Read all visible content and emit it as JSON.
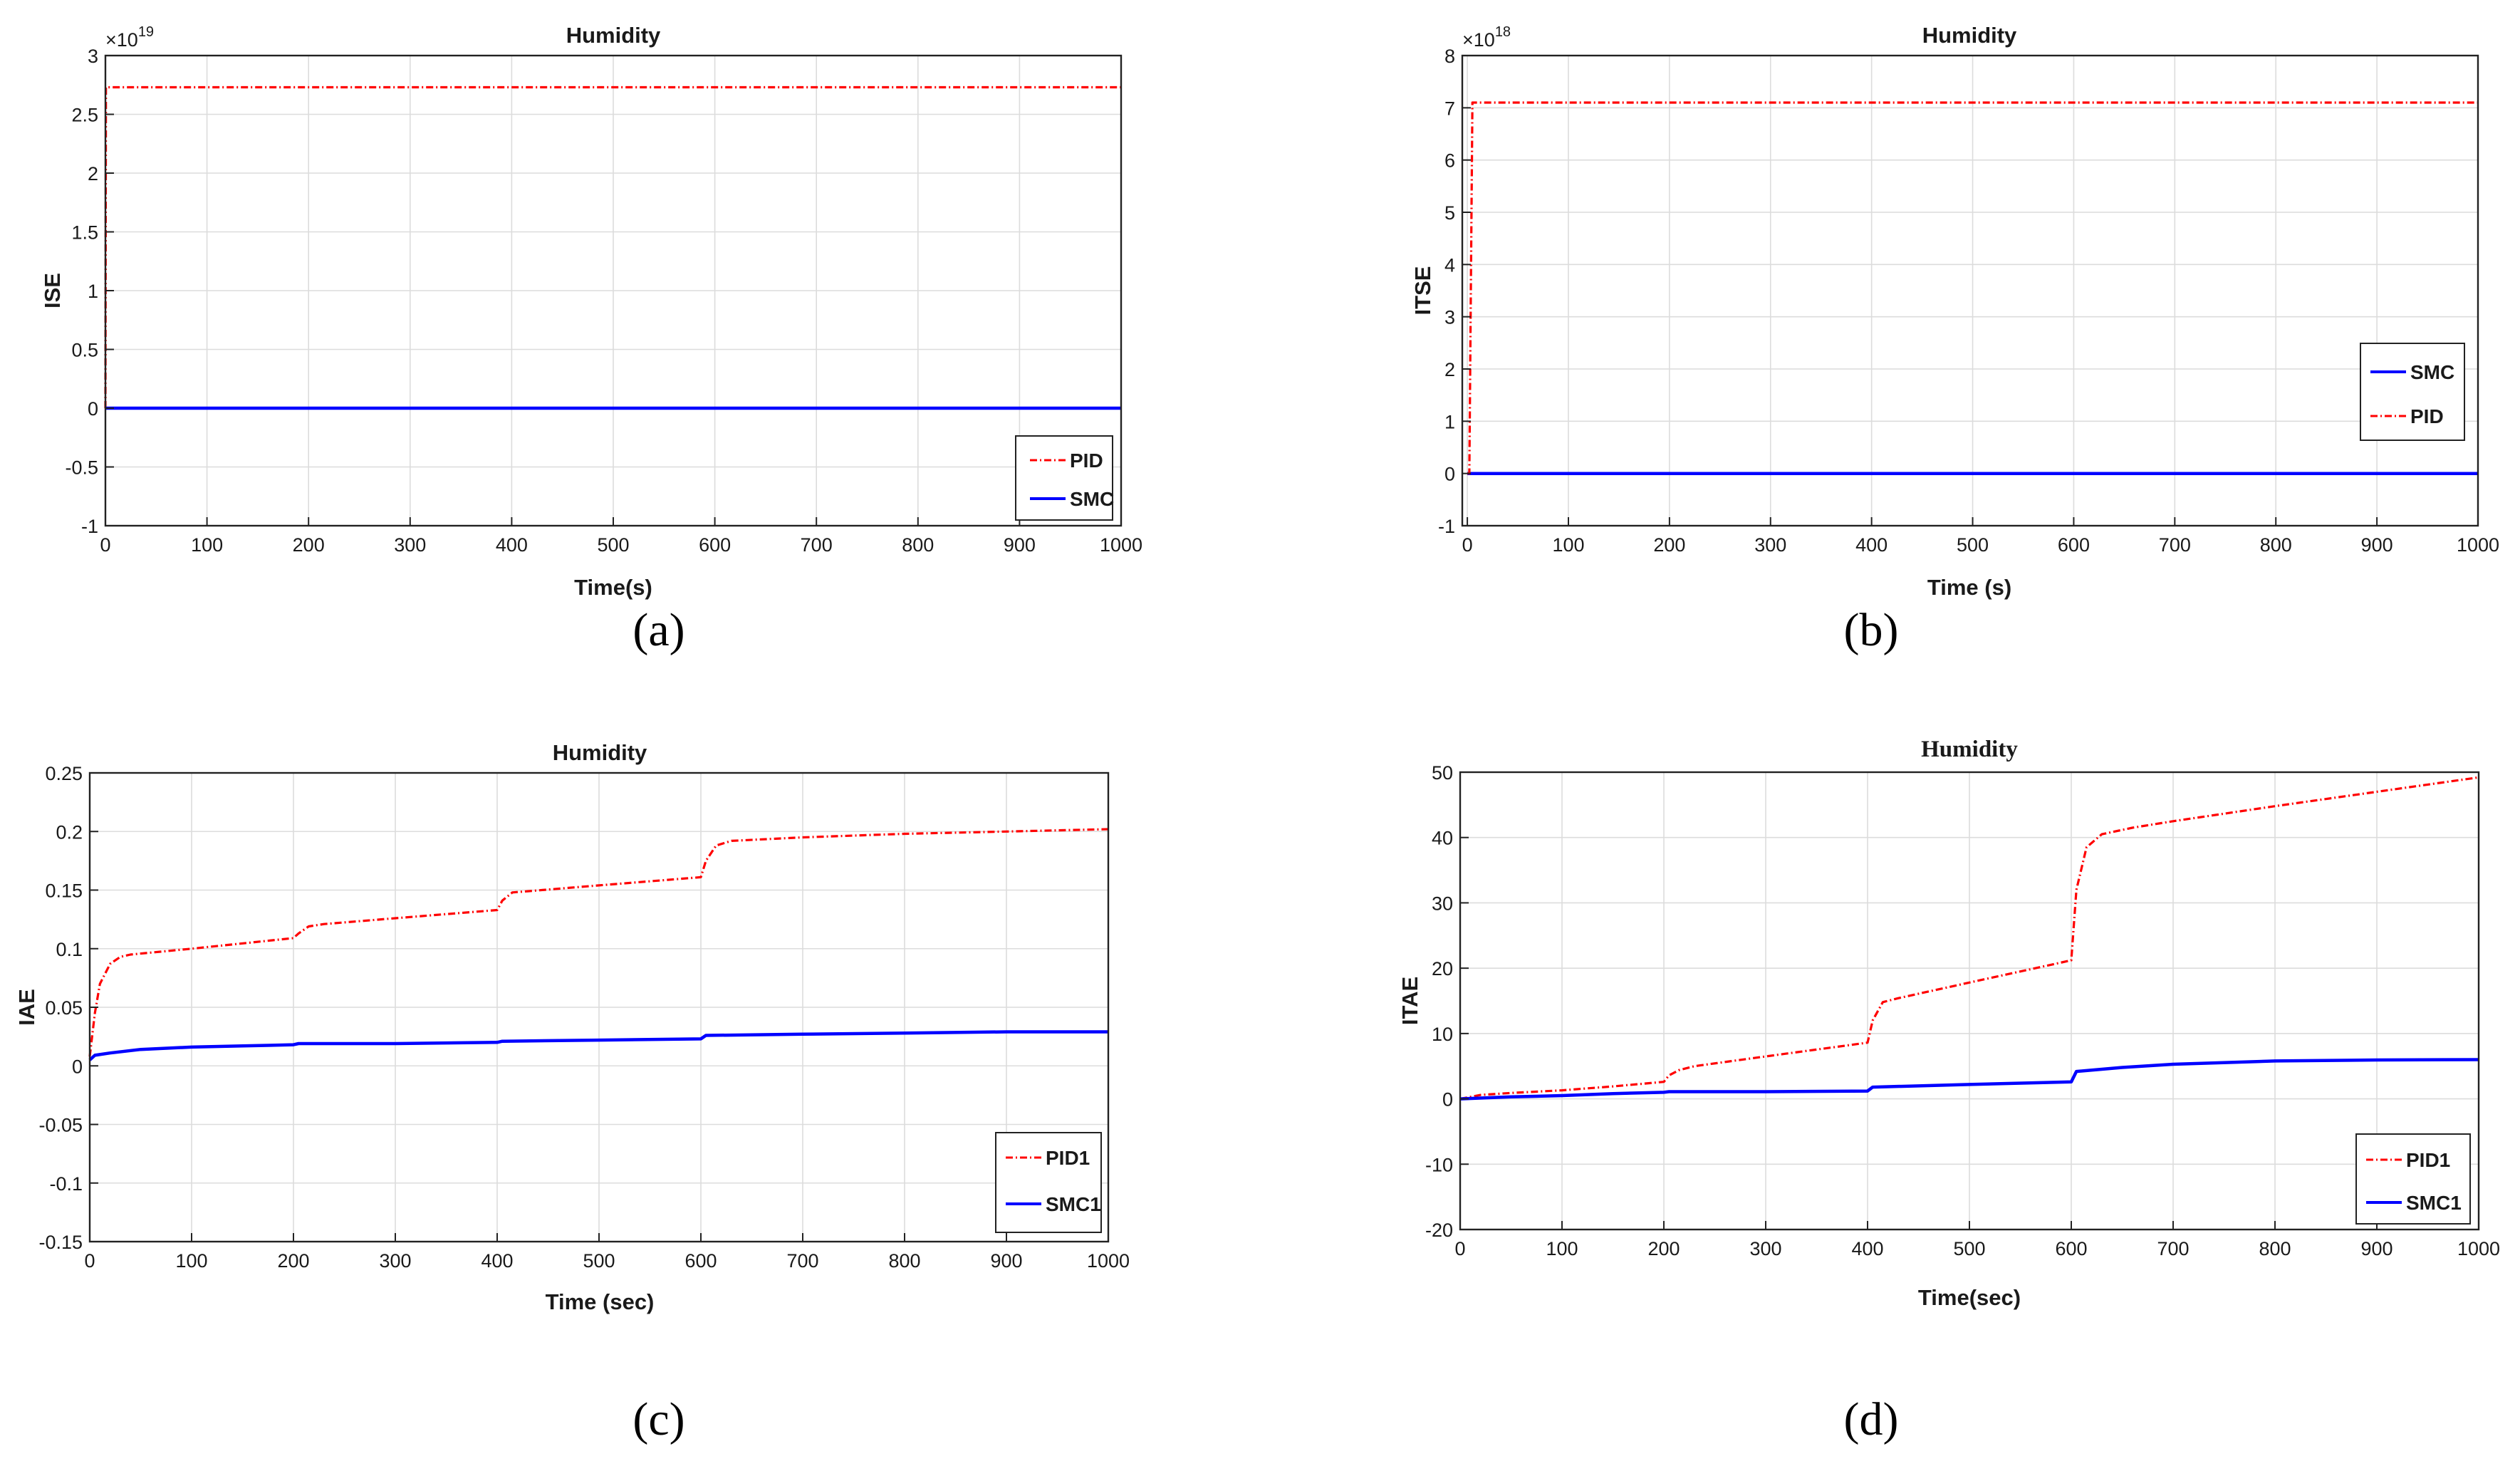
{
  "chart_data": [
    {
      "id": "a",
      "type": "line",
      "title": "Humidity",
      "xlabel": "Time(s)",
      "ylabel": "ISE",
      "exponent_label": "×10",
      "exponent_power": "19",
      "xlim": [
        0,
        1000
      ],
      "ylim": [
        -1,
        3
      ],
      "xticks": [
        0,
        100,
        200,
        300,
        400,
        500,
        600,
        700,
        800,
        900,
        1000
      ],
      "yticks": [
        -1,
        -0.5,
        0,
        0.5,
        1,
        1.5,
        2,
        2.5,
        3
      ],
      "ytick_labels": [
        "-1",
        "-0.5",
        "0",
        "0.5",
        "1",
        "1.5",
        "2",
        "2.5",
        "3"
      ],
      "legend_position": "bottom-right",
      "legend_order": [
        "PID",
        "SMC"
      ],
      "caption": "(a)",
      "series": [
        {
          "name": "PID",
          "color": "#ff0000",
          "style": "dashdot",
          "x": [
            0,
            0.5,
            2,
            1000
          ],
          "y": [
            0,
            2.73,
            2.73,
            2.73
          ]
        },
        {
          "name": "SMC",
          "color": "#0000ff",
          "style": "solid",
          "x": [
            0,
            1000
          ],
          "y": [
            0,
            0
          ]
        }
      ]
    },
    {
      "id": "b",
      "type": "line",
      "title": "Humidity",
      "xlabel": "Time (s)",
      "ylabel": "ITSE",
      "exponent_label": "×10",
      "exponent_power": "18",
      "xlim": [
        -5,
        1000
      ],
      "ylim": [
        -1,
        8
      ],
      "xticks": [
        0,
        100,
        200,
        300,
        400,
        500,
        600,
        700,
        800,
        900,
        1000
      ],
      "yticks": [
        -1,
        0,
        1,
        2,
        3,
        4,
        5,
        6,
        7,
        8
      ],
      "ytick_labels": [
        "-1",
        "0",
        "1",
        "2",
        "3",
        "4",
        "5",
        "6",
        "7",
        "8"
      ],
      "legend_position": "right",
      "legend_order": [
        "SMC",
        "PID"
      ],
      "caption": "(b)",
      "series": [
        {
          "name": "SMC",
          "color": "#0000ff",
          "style": "solid",
          "x": [
            0,
            1000
          ],
          "y": [
            0,
            0
          ]
        },
        {
          "name": "PID",
          "color": "#ff0000",
          "style": "dashdot",
          "x": [
            0,
            2,
            5,
            1000
          ],
          "y": [
            0,
            0,
            7.1,
            7.1
          ]
        }
      ]
    },
    {
      "id": "c",
      "type": "line",
      "title": "Humidity",
      "xlabel": "Time (sec)",
      "ylabel": "IAE",
      "xlim": [
        0,
        1000
      ],
      "ylim": [
        -0.15,
        0.25
      ],
      "xticks": [
        0,
        100,
        200,
        300,
        400,
        500,
        600,
        700,
        800,
        900,
        1000
      ],
      "yticks": [
        -0.15,
        -0.1,
        -0.05,
        0,
        0.05,
        0.1,
        0.15,
        0.2,
        0.25
      ],
      "ytick_labels": [
        "-0.15",
        "-0.1",
        "-0.05",
        "0",
        "0.05",
        "0.1",
        "0.15",
        "0.2",
        "0.25"
      ],
      "legend_position": "bottom-right",
      "legend_order": [
        "PID1",
        "SMC1"
      ],
      "caption": "(c)",
      "series": [
        {
          "name": "PID1",
          "color": "#ff0000",
          "style": "dashdot",
          "x": [
            0,
            5,
            10,
            20,
            30,
            40,
            100,
            200,
            205,
            215,
            230,
            300,
            400,
            405,
            415,
            430,
            500,
            600,
            605,
            615,
            630,
            700,
            800,
            900,
            1000
          ],
          "y": [
            0.008,
            0.045,
            0.07,
            0.087,
            0.093,
            0.095,
            0.1,
            0.109,
            0.113,
            0.119,
            0.121,
            0.126,
            0.133,
            0.141,
            0.148,
            0.149,
            0.154,
            0.161,
            0.175,
            0.188,
            0.192,
            0.195,
            0.198,
            0.2,
            0.202
          ]
        },
        {
          "name": "SMC1",
          "color": "#0000ff",
          "style": "solid",
          "x": [
            0,
            5,
            20,
            50,
            100,
            150,
            200,
            205,
            300,
            400,
            405,
            500,
            600,
            605,
            700,
            800,
            900,
            1000
          ],
          "y": [
            0.005,
            0.009,
            0.011,
            0.014,
            0.016,
            0.017,
            0.018,
            0.019,
            0.019,
            0.02,
            0.021,
            0.022,
            0.023,
            0.026,
            0.027,
            0.028,
            0.029,
            0.029
          ]
        }
      ]
    },
    {
      "id": "d",
      "type": "line",
      "title": "Humidity",
      "xlabel": "Time(sec)",
      "ylabel": "ITAE",
      "xlim": [
        0,
        1000
      ],
      "ylim": [
        -20,
        50
      ],
      "xticks": [
        0,
        100,
        200,
        300,
        400,
        500,
        600,
        700,
        800,
        900,
        1000
      ],
      "yticks": [
        -20,
        -10,
        0,
        10,
        20,
        30,
        40,
        50
      ],
      "ytick_labels": [
        "-20",
        "-10",
        "0",
        "10",
        "20",
        "30",
        "40",
        "50"
      ],
      "legend_position": "bottom-right",
      "legend_order": [
        "PID1",
        "SMC1"
      ],
      "caption": "(d)",
      "series": [
        {
          "name": "PID1",
          "color": "#ff0000",
          "style": "dashdot",
          "x": [
            0,
            20,
            50,
            100,
            150,
            200,
            205,
            215,
            230,
            300,
            400,
            405,
            415,
            430,
            500,
            600,
            605,
            615,
            630,
            660,
            700,
            800,
            900,
            1000
          ],
          "y": [
            0,
            0.6,
            0.9,
            1.3,
            1.9,
            2.6,
            3.6,
            4.4,
            5.0,
            6.5,
            8.6,
            12.0,
            14.8,
            15.4,
            17.8,
            21.2,
            32.0,
            38.5,
            40.5,
            41.5,
            42.5,
            44.8,
            47.0,
            49.2
          ]
        },
        {
          "name": "SMC1",
          "color": "#0000ff",
          "style": "solid",
          "x": [
            0,
            50,
            100,
            150,
            200,
            205,
            300,
            400,
            405,
            500,
            600,
            605,
            650,
            700,
            800,
            900,
            1000
          ],
          "y": [
            0,
            0.3,
            0.5,
            0.8,
            1.0,
            1.1,
            1.1,
            1.2,
            1.8,
            2.2,
            2.6,
            4.2,
            4.8,
            5.3,
            5.8,
            5.95,
            6.0
          ]
        }
      ]
    }
  ]
}
